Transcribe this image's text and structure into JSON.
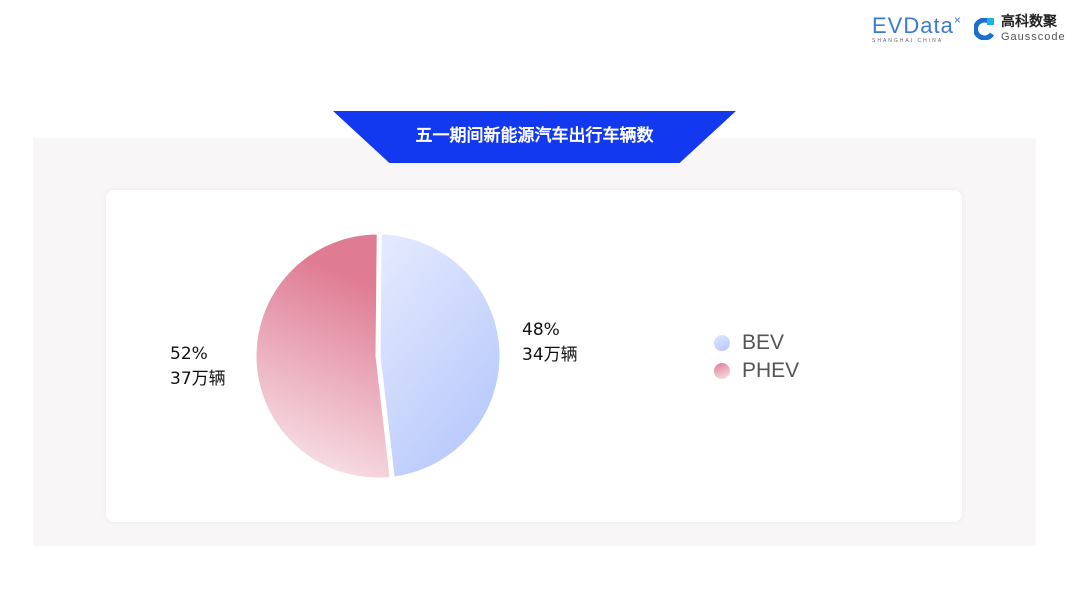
{
  "logos": {
    "evdata": "EVData",
    "evdata_sub": "SHANGHAI CHINA",
    "gauss_cn": "高科数聚",
    "gauss_en": "Gausscode"
  },
  "title": "五一期间新能源汽车出行车辆数",
  "chart_data": {
    "type": "pie",
    "title": "五一期间新能源汽车出行车辆数",
    "legend_position": "right",
    "slices": [
      {
        "name": "BEV",
        "percent": 48,
        "value_label": "34万辆",
        "value": 34,
        "unit": "万辆",
        "color_from": "#e2e8fd",
        "color_to": "#b4c6fc"
      },
      {
        "name": "PHEV",
        "percent": 52,
        "value_label": "37万辆",
        "value": 37,
        "unit": "万辆",
        "color_from": "#df7b93",
        "color_to": "#f8e4ea"
      }
    ],
    "labels": [
      {
        "pct": "48%",
        "val": "34万辆"
      },
      {
        "pct": "52%",
        "val": "37万辆"
      }
    ]
  }
}
